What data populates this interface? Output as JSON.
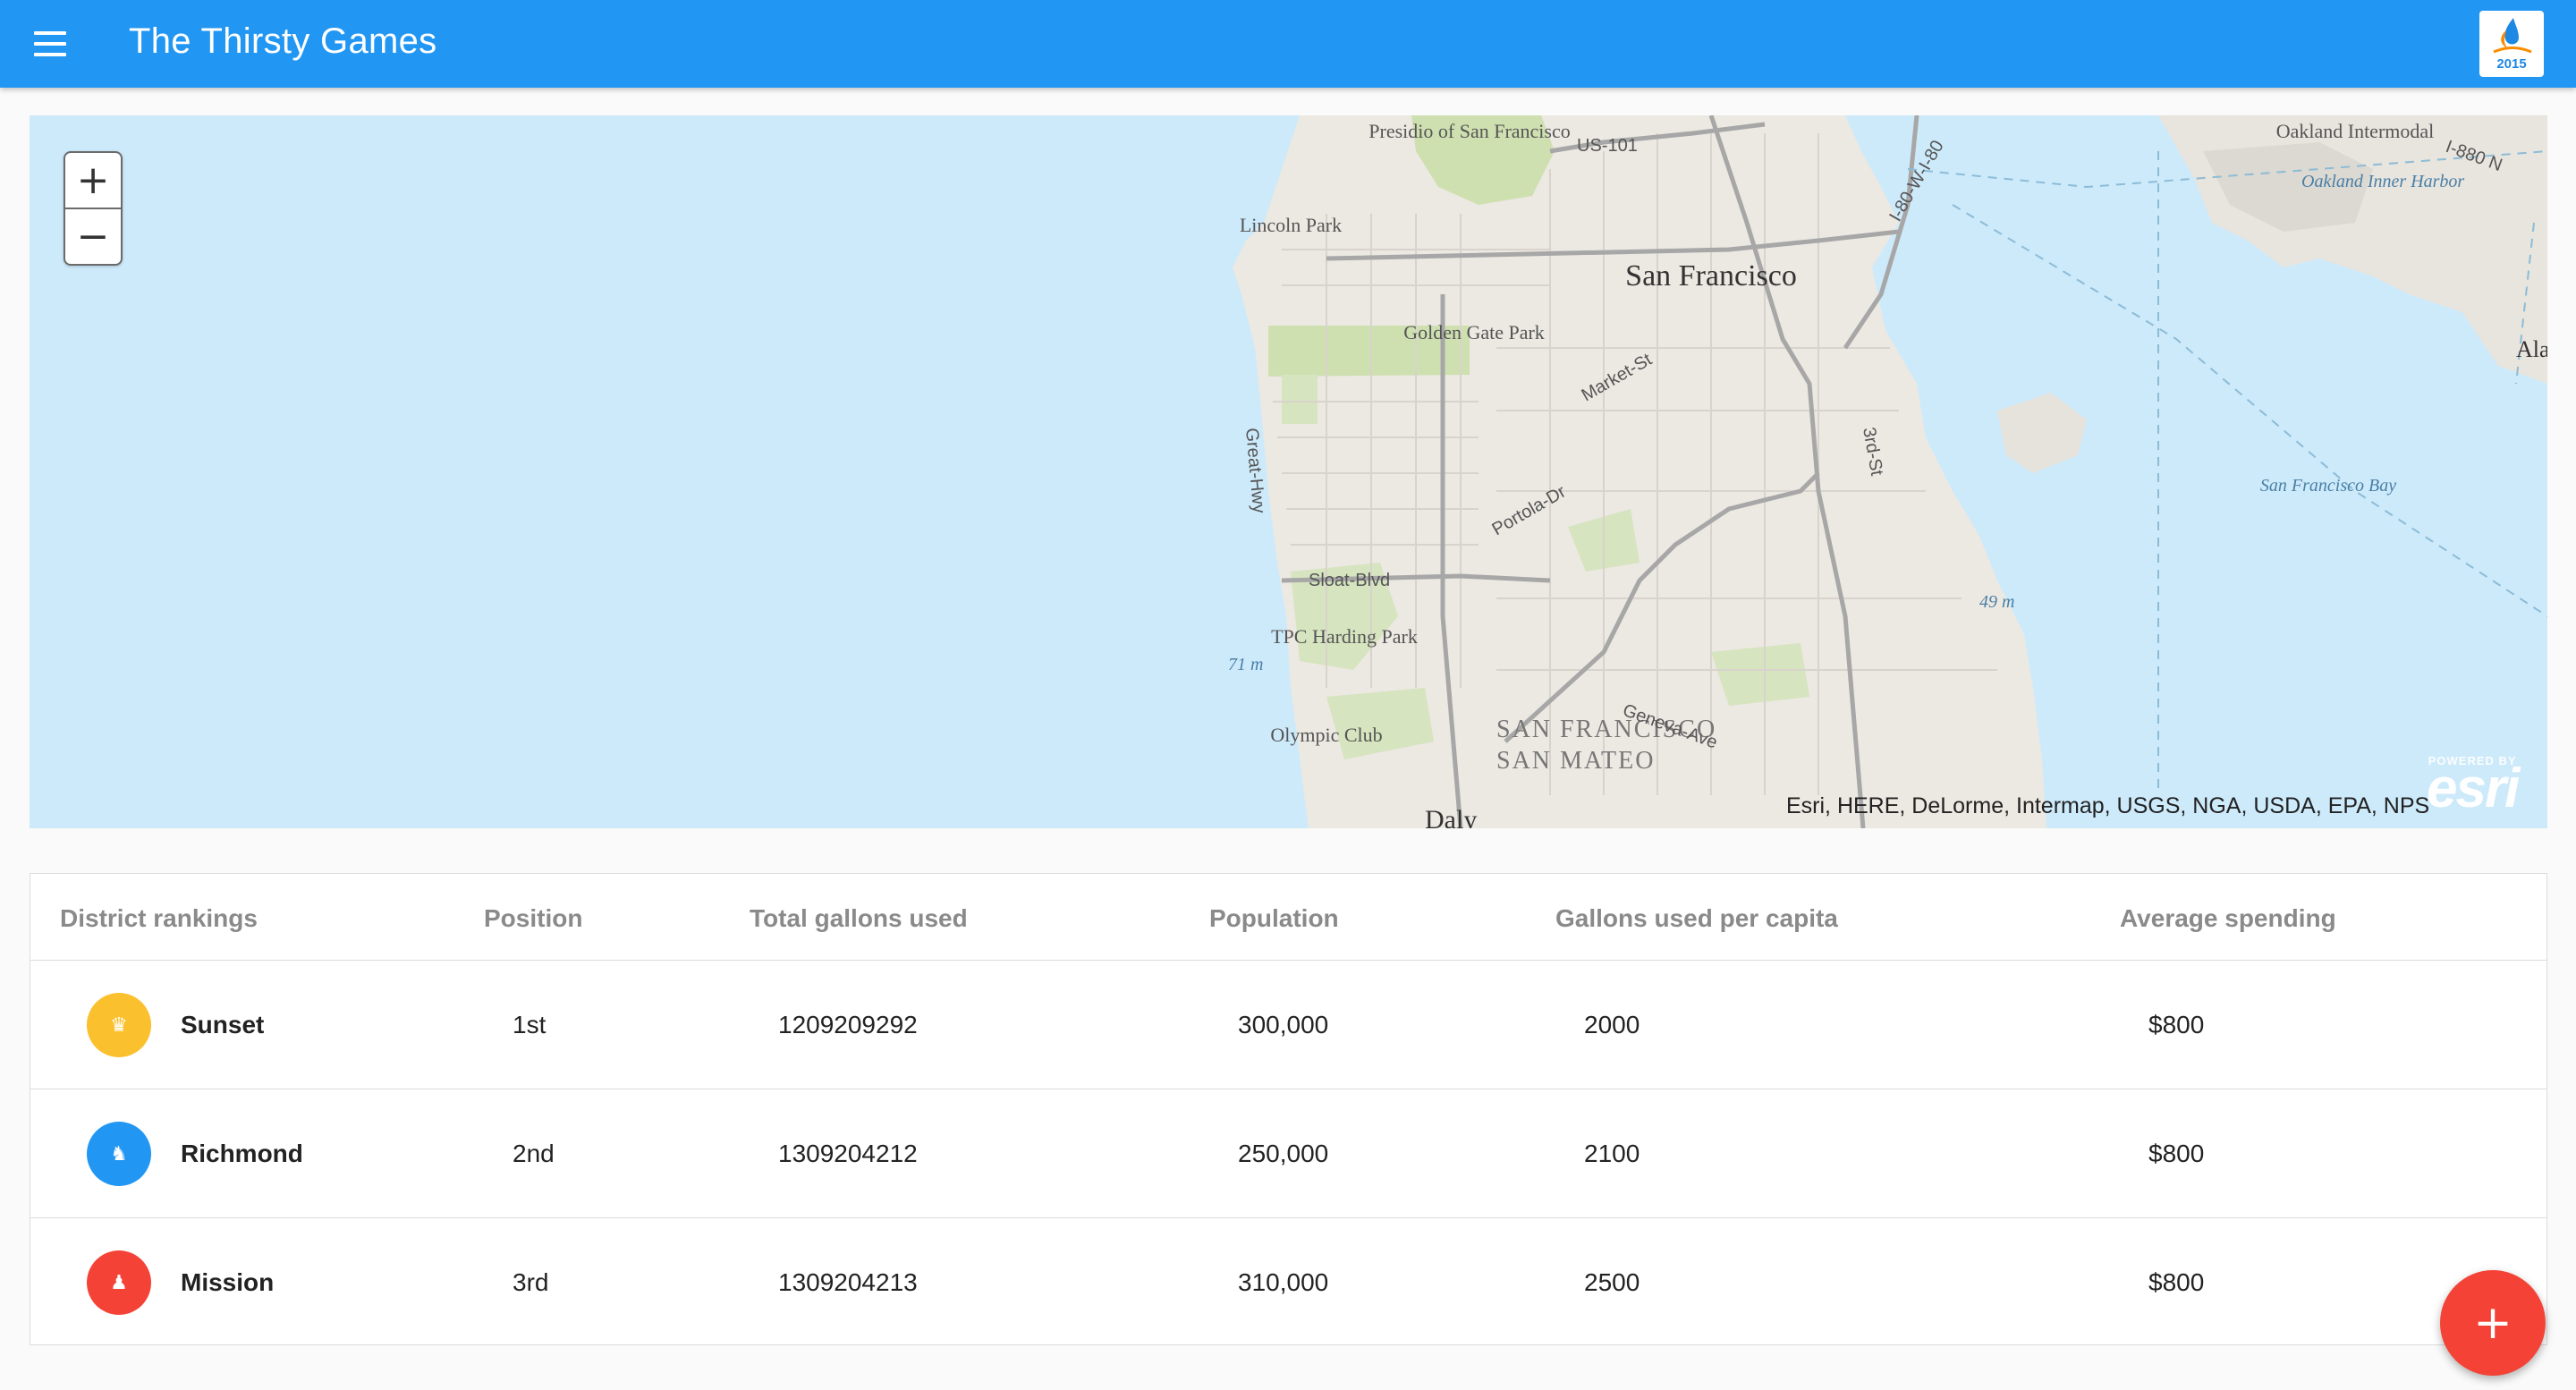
{
  "app": {
    "title": "The Thirsty Games",
    "logo_text": "2015"
  },
  "map": {
    "zoom_in": "+",
    "zoom_out": "−",
    "attribution": "Esri, HERE, DeLorme, Intermap, USGS, NGA, USDA, EPA, NPS",
    "powered_by": "POWERED BY",
    "esri_logo": "esri",
    "labels": {
      "presidio": "Presidio of San Francisco",
      "lincoln_park": "Lincoln Park",
      "golden_gate_park": "Golden Gate Park",
      "san_francisco": "San Francisco",
      "oakland_intermodal": "Oakland Intermodal",
      "oakland_inner_harbor": "Oakland Inner Harbor",
      "sf_bay": "San Francisco Bay",
      "tpc_harding_park": "TPC Harding Park",
      "olympic_club": "Olympic Club",
      "sf_county": "SAN FRANCISCO",
      "san_mateo": "SAN MATEO",
      "daly": "Daly",
      "elev_49": "49 m",
      "elev_71": "71 m",
      "us101": "US-101",
      "i80": "I-80-W-I-80",
      "i880": "I-880 N",
      "market_st": "Market-St",
      "sloat_blvd": "Sloat-Blvd",
      "portola_dr": "Portola-Dr",
      "geneva_ave": "Geneva-Ave",
      "third_st": "3rd-St",
      "great_hwy": "Great-Hwy",
      "ala": "Ala"
    },
    "colors": {
      "water": "#cdeafb",
      "land": "#ece8e2",
      "park": "#cfe0b0"
    }
  },
  "table": {
    "headers": {
      "district": "District rankings",
      "position": "Position",
      "total": "Total gallons used",
      "population": "Population",
      "per_capita": "Gallons used per capita",
      "spending": "Average spending"
    },
    "rows": [
      {
        "icon": "crown-icon",
        "glyph": "♛",
        "color": "#fbc02d",
        "name": "Sunset",
        "position": "1st",
        "total": "1209209292",
        "population": "300,000",
        "per_capita": "2000",
        "spending": "$800"
      },
      {
        "icon": "knight-icon",
        "glyph": "♞",
        "color": "#2196f3",
        "name": "Richmond",
        "position": "2nd",
        "total": "1309204212",
        "population": "250,000",
        "per_capita": "2100",
        "spending": "$800"
      },
      {
        "icon": "pawn-icon",
        "glyph": "♟",
        "color": "#f44336",
        "name": "Mission",
        "position": "3rd",
        "total": "1309204213",
        "population": "310,000",
        "per_capita": "2500",
        "spending": "$800"
      }
    ]
  },
  "fab": {
    "label": "+"
  }
}
